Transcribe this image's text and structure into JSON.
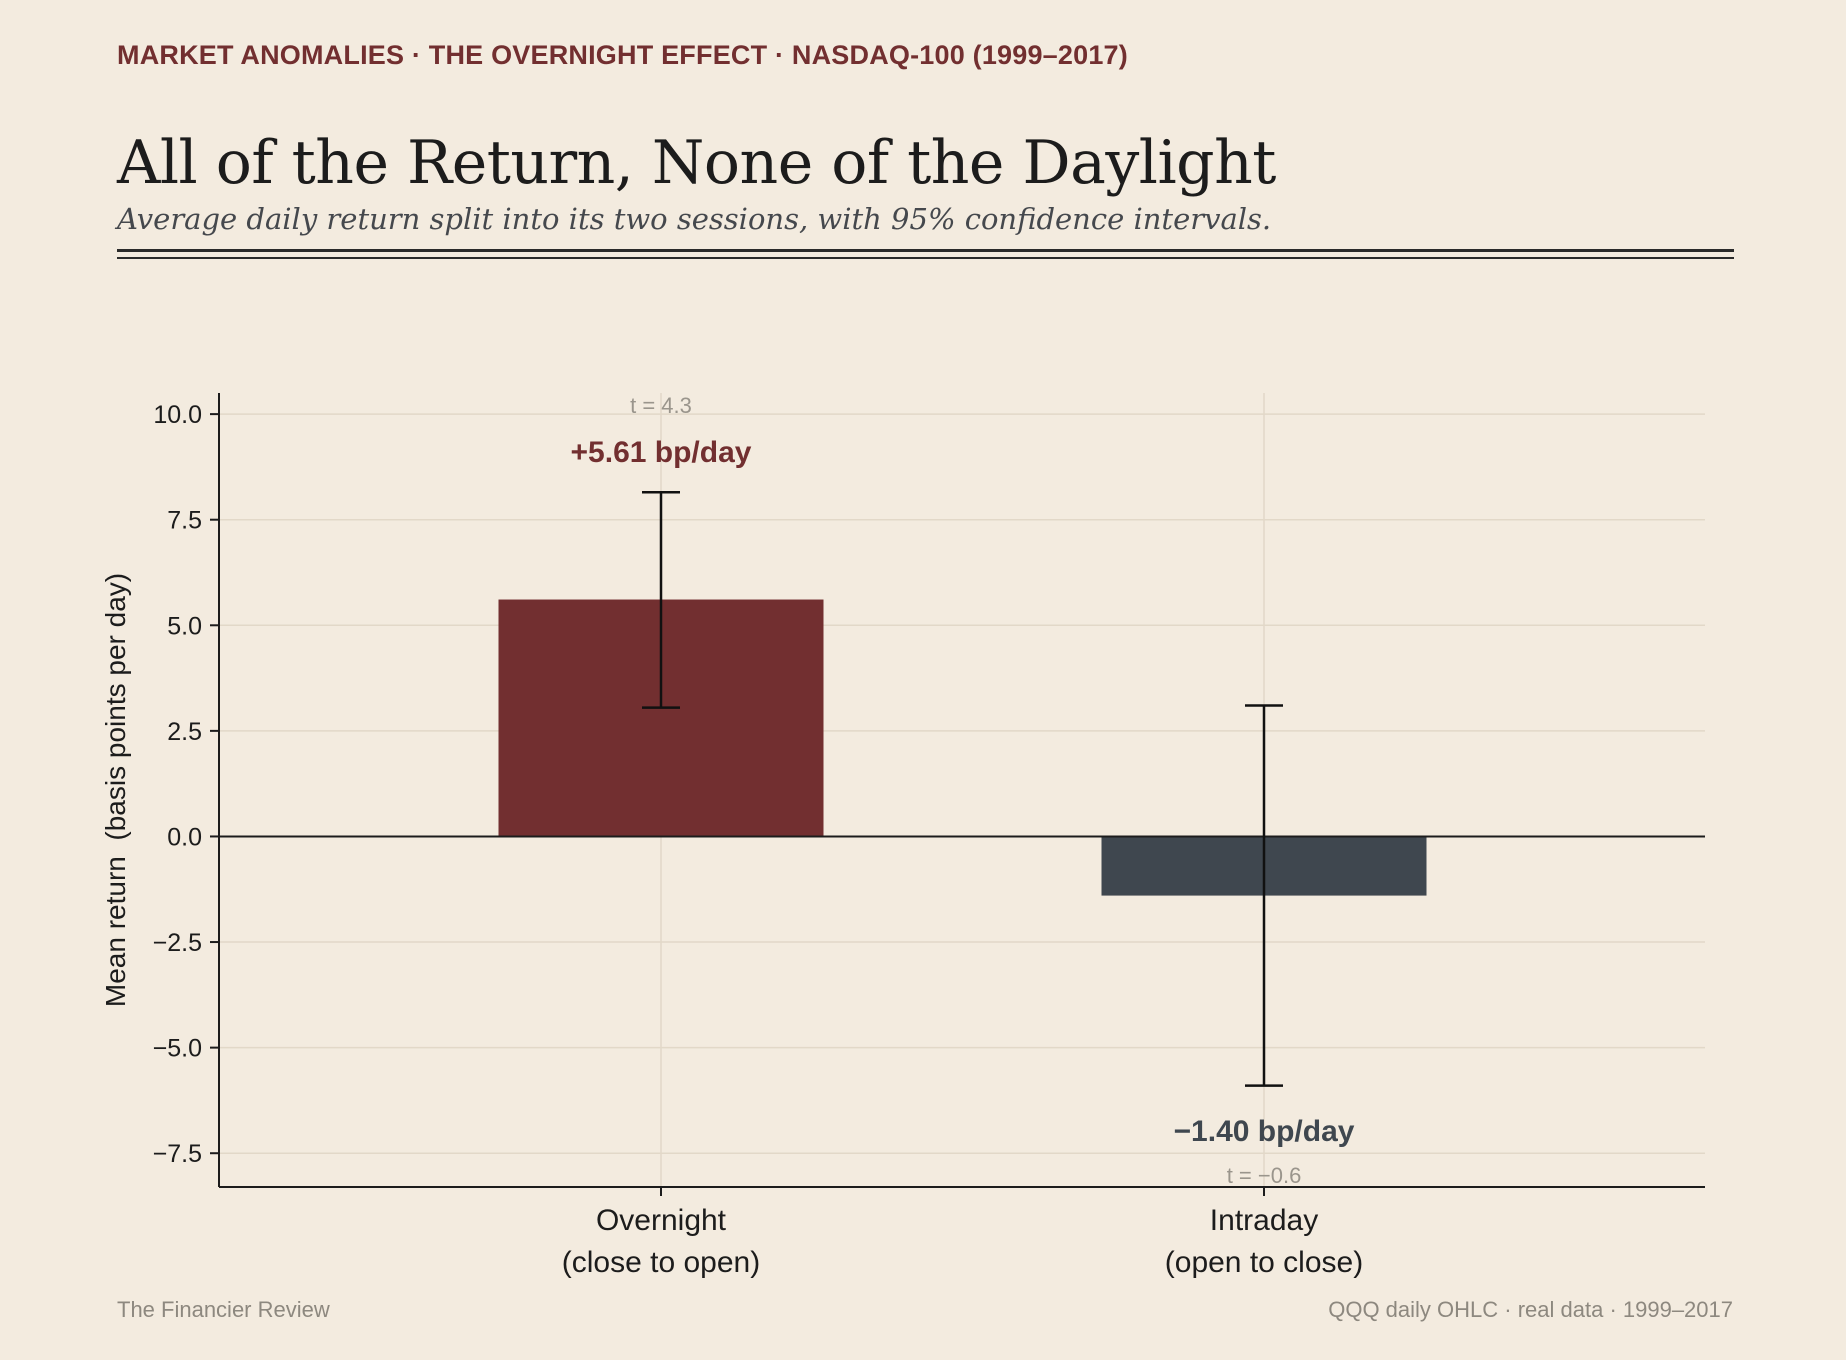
{
  "header": {
    "kicker": "MARKET ANOMALIES · THE OVERNIGHT EFFECT · NASDAQ-100 (1999–2017)",
    "title": "All of the Return, None of the Daylight",
    "subtitle": "Average daily return split into its two sessions, with 95% confidence intervals."
  },
  "footer": {
    "left": "The Financier Review",
    "right": "QQQ daily OHLC · real data · 1999–2017"
  },
  "colors": {
    "overnight": "#722f30",
    "intraday": "#3f474f",
    "background": "#f3ebdf",
    "grid": "#e2d8c8",
    "axis": "#1c1c1c",
    "muted": "#9a958c"
  },
  "chart_data": {
    "type": "bar",
    "title": "All of the Return, None of the Daylight",
    "ylabel": "Mean return  (basis points per day)",
    "xlabel": "",
    "ylim": [
      -8.3,
      10.5
    ],
    "yticks": [
      10.0,
      7.5,
      5.0,
      2.5,
      0.0,
      -2.5,
      -5.0,
      -7.5
    ],
    "ytick_labels": [
      "10.0",
      "7.5",
      "5.0",
      "2.5",
      "0.0",
      "−2.5",
      "−5.0",
      "−7.5"
    ],
    "grid": true,
    "bars": [
      {
        "category_line1": "Overnight",
        "category_line2": "(close to open)",
        "value": 5.61,
        "ci_low": 3.05,
        "ci_high": 8.15,
        "value_label": "+5.61 bp/day",
        "t_label": "t = 4.3",
        "color": "#722f30"
      },
      {
        "category_line1": "Intraday",
        "category_line2": "(open to close)",
        "value": -1.4,
        "ci_low": -5.9,
        "ci_high": 3.1,
        "value_label": "−1.40 bp/day",
        "t_label": "t = −0.6",
        "color": "#3f474f"
      }
    ]
  }
}
